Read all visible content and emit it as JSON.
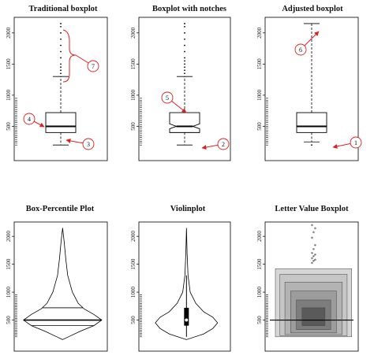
{
  "chart_data": [
    {
      "type": "boxplot",
      "variant": "traditional",
      "title": "Traditional boxplot",
      "ylim": [
        0,
        2200
      ],
      "yticks": [
        500,
        1000,
        1500,
        2000
      ],
      "box": {
        "whisker_low": 200,
        "q1": 400,
        "median": 500,
        "q3": 720,
        "whisker_high": 1300
      },
      "outliers": [
        1350,
        1400,
        1450,
        1500,
        1600,
        1700,
        1800,
        1900,
        2000,
        2100,
        2150
      ],
      "callouts": [
        {
          "label": "3",
          "target": "lower whisker"
        },
        {
          "label": "4",
          "target": "box"
        },
        {
          "label": "7",
          "target": "outliers"
        }
      ]
    },
    {
      "type": "boxplot",
      "variant": "notched",
      "title": "Boxplot with notches",
      "ylim": [
        0,
        2200
      ],
      "yticks": [
        500,
        1000,
        1500,
        2000
      ],
      "box": {
        "whisker_low": 200,
        "q1": 400,
        "median": 500,
        "q3": 720,
        "whisker_high": 1300,
        "notch_low": 460,
        "notch_high": 540
      },
      "outliers": [
        1350,
        1400,
        1450,
        1500,
        1550,
        1600,
        1700,
        1800,
        1900,
        2000,
        2100,
        2150
      ],
      "callouts": [
        {
          "label": "5",
          "target": "notch"
        },
        {
          "label": "2",
          "target": "lower whisker"
        }
      ]
    },
    {
      "type": "boxplot",
      "variant": "adjusted",
      "title": "Adjusted boxplot",
      "ylim": [
        0,
        2200
      ],
      "yticks": [
        500,
        1000,
        1500,
        2000
      ],
      "box": {
        "whisker_low": 250,
        "q1": 400,
        "median": 500,
        "q3": 720,
        "whisker_high": 2150
      },
      "outliers": [
        200
      ],
      "callouts": [
        {
          "label": "6",
          "target": "upper whisker"
        },
        {
          "label": "1",
          "target": "lower outlier"
        }
      ]
    },
    {
      "type": "box-percentile",
      "title": "Box-Percentile Plot",
      "ylim": [
        0,
        2200
      ],
      "yticks": [
        500,
        1000,
        1500,
        2000
      ],
      "profile": [
        [
          150,
          0.0
        ],
        [
          200,
          0.15
        ],
        [
          300,
          0.45
        ],
        [
          400,
          0.8
        ],
        [
          500,
          1.0
        ],
        [
          600,
          0.8
        ],
        [
          700,
          0.55
        ],
        [
          800,
          0.4
        ],
        [
          1000,
          0.25
        ],
        [
          1300,
          0.13
        ],
        [
          1600,
          0.08
        ],
        [
          1900,
          0.04
        ],
        [
          2150,
          0.0
        ]
      ],
      "lines": [
        400,
        500,
        720
      ]
    },
    {
      "type": "violin",
      "title": "Violinplot",
      "ylim": [
        0,
        2200
      ],
      "yticks": [
        500,
        1000,
        1500,
        2000
      ],
      "density": [
        [
          150,
          0.0
        ],
        [
          250,
          0.55
        ],
        [
          350,
          0.85
        ],
        [
          450,
          1.0
        ],
        [
          550,
          0.85
        ],
        [
          650,
          0.55
        ],
        [
          800,
          0.3
        ],
        [
          1000,
          0.12
        ],
        [
          1300,
          0.05
        ],
        [
          1700,
          0.02
        ],
        [
          2150,
          0.0
        ]
      ],
      "box": {
        "q1": 400,
        "median": 500,
        "q3": 720,
        "whisker_low": 200,
        "whisker_high": 1300
      }
    },
    {
      "type": "letter-value",
      "title": "Letter Value Boxplot",
      "ylim": [
        0,
        2200
      ],
      "yticks": [
        500,
        1000,
        1500,
        2000
      ],
      "median": 500,
      "boxes": [
        {
          "lo": 400,
          "hi": 720,
          "width": 0.3,
          "color": "#5a5a5a"
        },
        {
          "lo": 330,
          "hi": 860,
          "width": 0.45,
          "color": "#7d7d7d"
        },
        {
          "lo": 270,
          "hi": 1020,
          "width": 0.6,
          "color": "#9c9c9c"
        },
        {
          "lo": 240,
          "hi": 1180,
          "width": 0.75,
          "color": "#b3b3b3"
        },
        {
          "lo": 220,
          "hi": 1320,
          "width": 0.88,
          "color": "#c6c6c6"
        },
        {
          "lo": 200,
          "hi": 1420,
          "width": 1.0,
          "color": "#d6d6d6"
        }
      ],
      "outliers": [
        1500,
        1540,
        1560,
        1590,
        1620,
        1650,
        1680,
        1750,
        1820,
        1950,
        2050,
        2120,
        2180
      ]
    }
  ]
}
